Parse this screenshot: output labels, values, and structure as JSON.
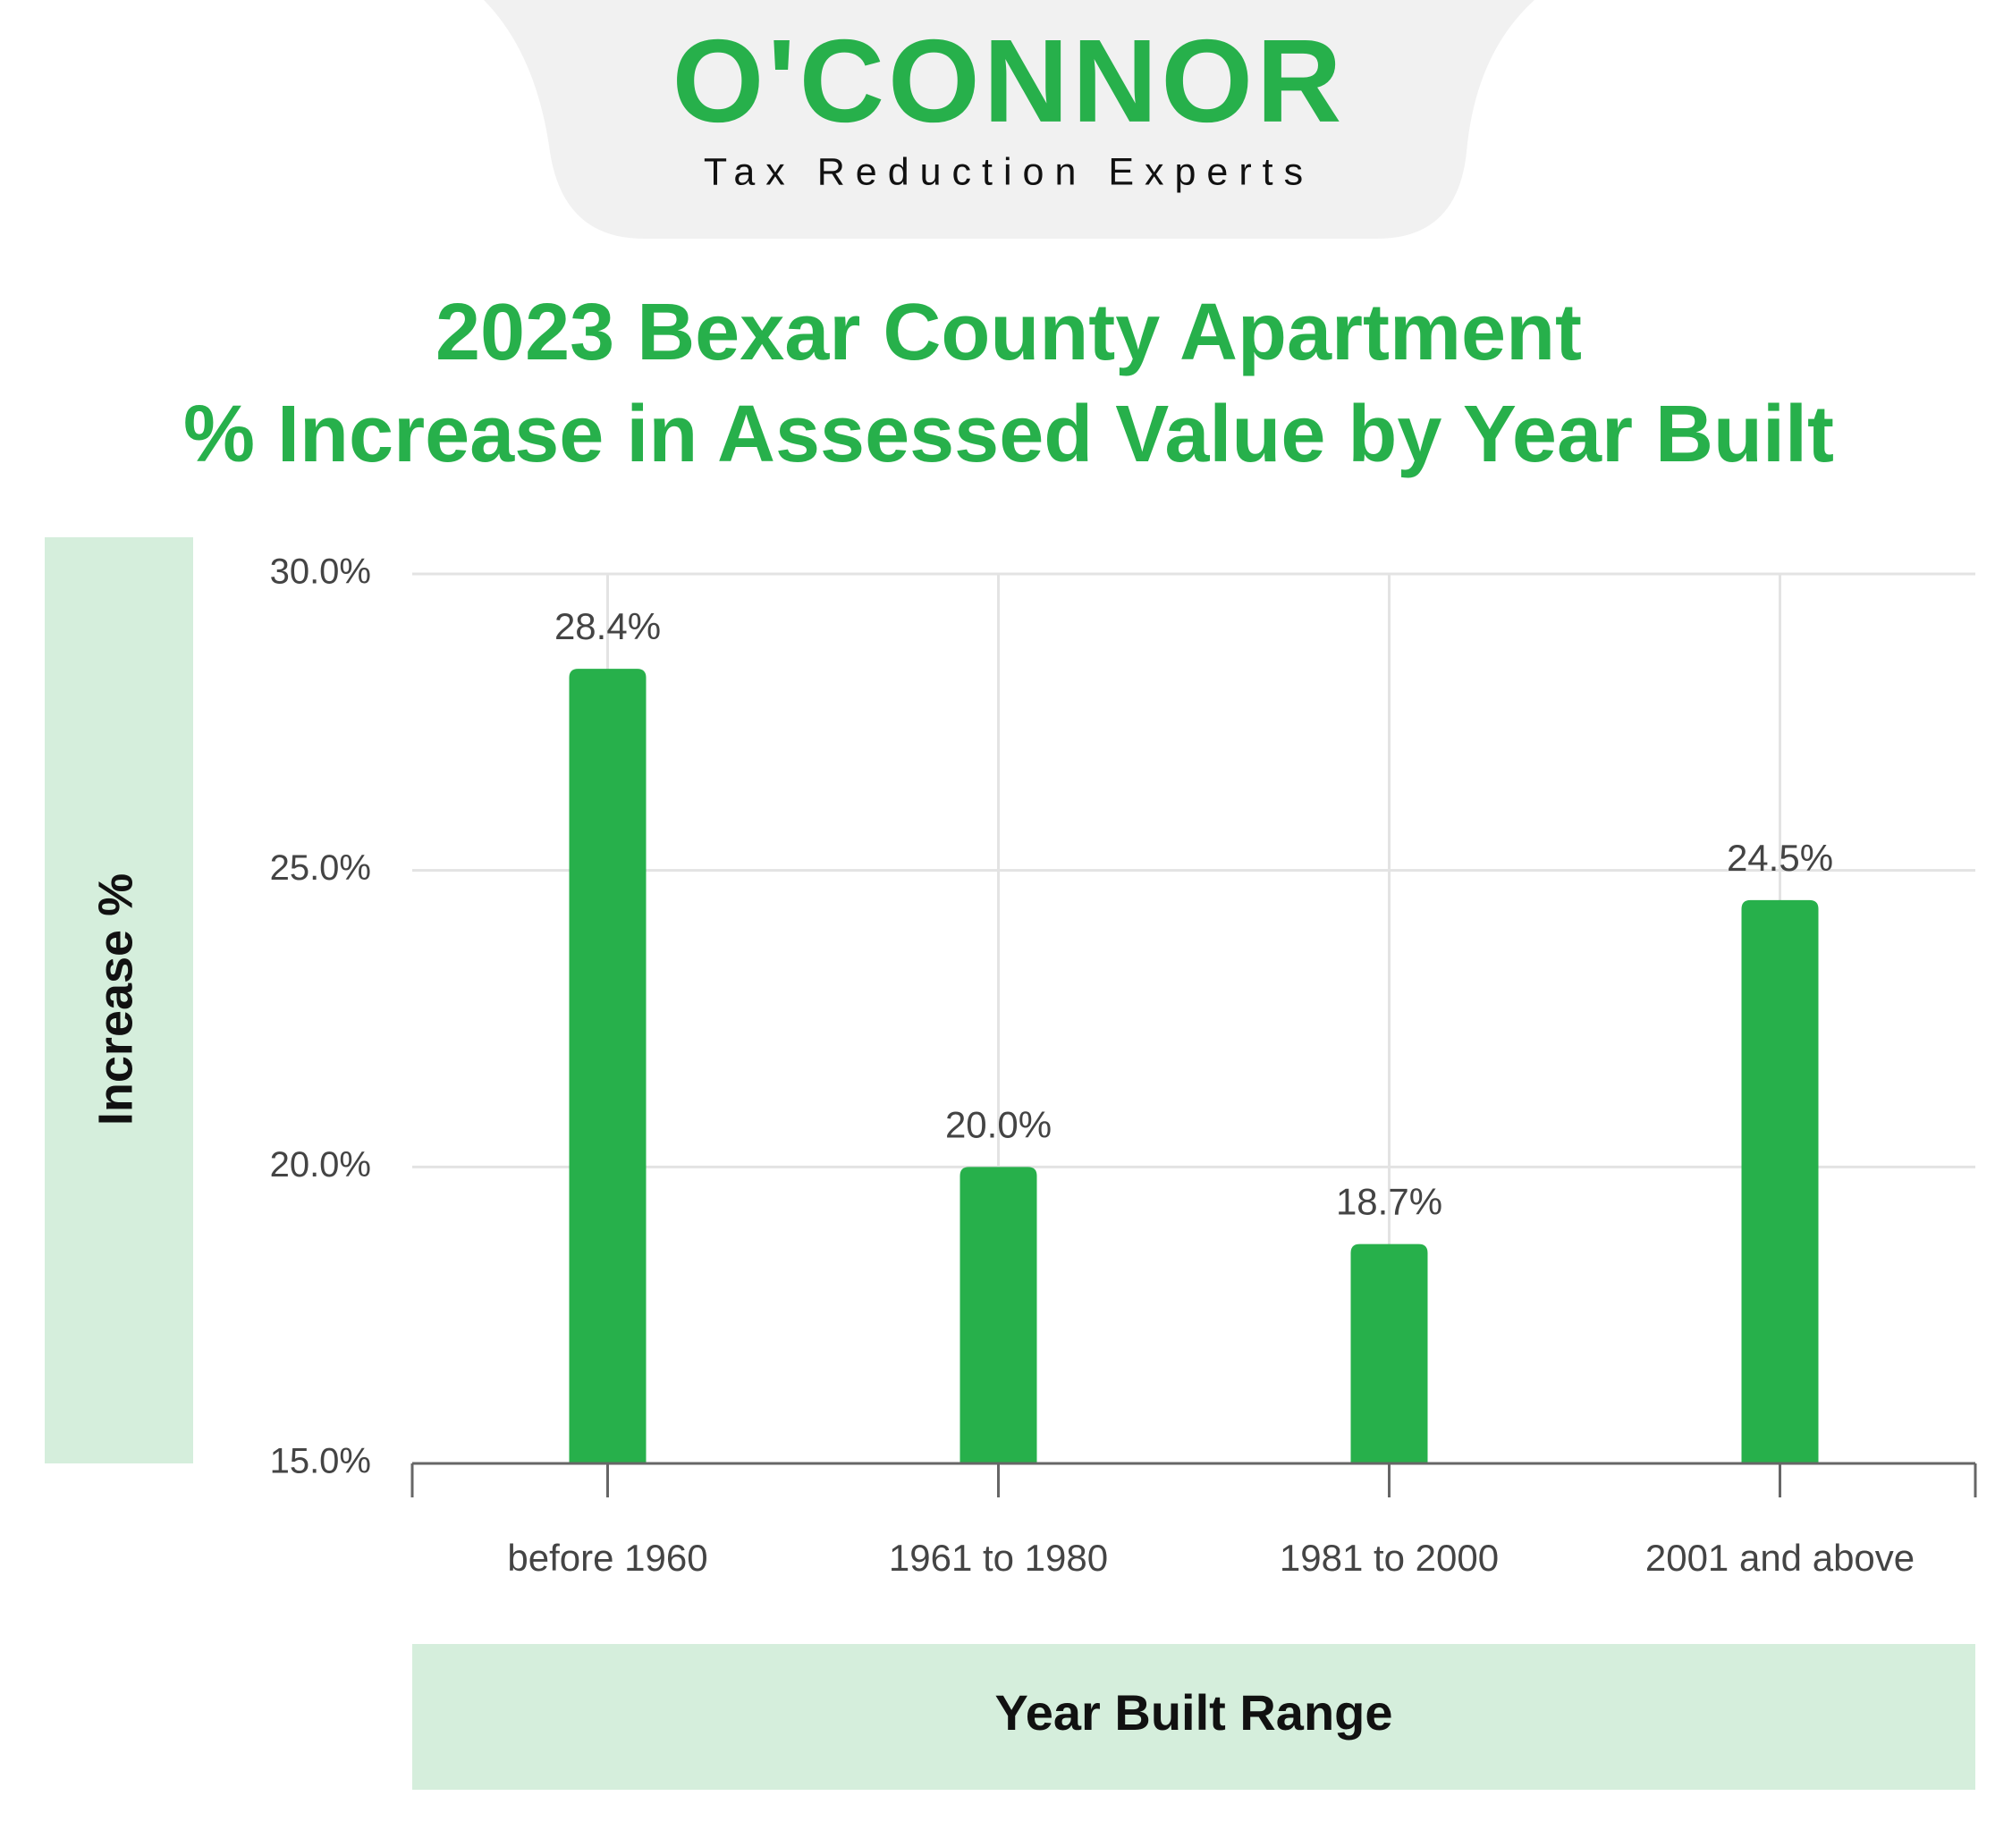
{
  "header": {
    "logo": "O'CONNOR",
    "tagline": "Tax Reduction Experts"
  },
  "chart_data": {
    "type": "bar",
    "title": [
      "2023 Bexar County Apartment",
      "% Increase in Assessed Value by Year Built"
    ],
    "x_label": "Year Built Range",
    "y_label": "Increase %",
    "categories": [
      "before 1960",
      "1961 to 1980",
      "1981 to 2000",
      "2001 and above"
    ],
    "values": [
      28.4,
      20.0,
      18.7,
      24.5
    ],
    "value_labels": [
      "28.4%",
      "20.0%",
      "18.7%",
      "24.5%"
    ],
    "color": "#27b04b",
    "ylim": [
      15,
      30
    ],
    "yticks": [
      {
        "value": 15,
        "label": "15.0%"
      },
      {
        "value": 20,
        "label": "20.0%"
      },
      {
        "value": 25,
        "label": "25.0%"
      },
      {
        "value": 30,
        "label": "30.0%"
      }
    ],
    "grid": true
  }
}
